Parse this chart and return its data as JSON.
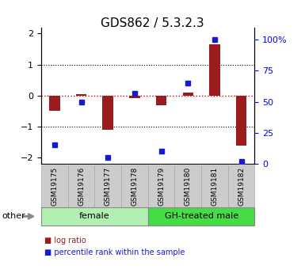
{
  "title": "GDS862 / 5.3.2.3",
  "samples": [
    "GSM19175",
    "GSM19176",
    "GSM19177",
    "GSM19178",
    "GSM19179",
    "GSM19180",
    "GSM19181",
    "GSM19182"
  ],
  "log_ratio": [
    -0.5,
    0.05,
    -1.1,
    -0.08,
    -0.32,
    0.1,
    1.65,
    -1.62
  ],
  "percentile_rank": [
    15,
    50,
    5,
    57,
    10,
    65,
    100,
    2
  ],
  "ylim": [
    -2.2,
    2.2
  ],
  "ylim_right": [
    0,
    110
  ],
  "yticks_left": [
    -2,
    -1,
    0,
    1,
    2
  ],
  "yticks_right": [
    0,
    25,
    50,
    75,
    100
  ],
  "ytick_labels_right": [
    "0",
    "25",
    "50",
    "75",
    "100%"
  ],
  "bar_color": "#9b1c1c",
  "square_color": "#1a1acd",
  "hline_color": "#cc0000",
  "dotted_color": "#000000",
  "groups": [
    {
      "label": "female",
      "start": 0,
      "end": 3,
      "color": "#b2f0b2"
    },
    {
      "label": "GH-treated male",
      "start": 4,
      "end": 7,
      "color": "#44dd44"
    }
  ],
  "other_label": "other",
  "legend_items": [
    {
      "label": "log ratio",
      "color": "#9b1c1c"
    },
    {
      "label": "percentile rank within the sample",
      "color": "#1a1acd"
    }
  ],
  "bar_width": 0.4,
  "figure_bg": "#ffffff",
  "plot_bg": "#ffffff"
}
